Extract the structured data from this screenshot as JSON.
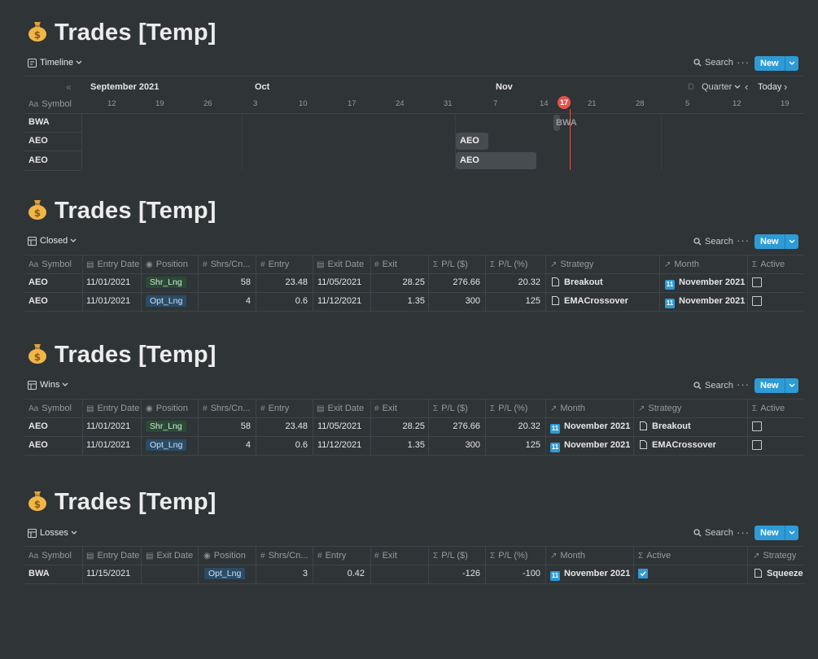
{
  "colors": {
    "background": "#2f3437",
    "accent": "#2e9bd6",
    "today": "#e5534b",
    "shr_tag": "#2b4a35",
    "opt_tag": "#2b4b66"
  },
  "common": {
    "search_label": "Search",
    "new_label": "New",
    "more_label": "···"
  },
  "timeline_block": {
    "title": "Trades [Temp]",
    "view_label": "Timeline",
    "months": [
      "September 2021",
      "Oct",
      "Nov"
    ],
    "days": [
      "12",
      "19",
      "26",
      "3",
      "10",
      "17",
      "24",
      "31",
      "7",
      "14",
      "21",
      "28",
      "5",
      "12",
      "19"
    ],
    "today_day": "17",
    "controls": {
      "scale": "Quarter",
      "today": "Today",
      "partial": "D"
    },
    "symbol_header": "Symbol",
    "rows": [
      "BWA",
      "AEO",
      "AEO"
    ],
    "bars": [
      "BWA",
      "AEO",
      "AEO"
    ]
  },
  "closed_block": {
    "title": "Trades [Temp]",
    "view_label": "Closed",
    "headers": [
      "Symbol",
      "Entry Date",
      "Position",
      "Shrs/Cn...",
      "Entry",
      "Exit Date",
      "Exit",
      "P/L ($)",
      "P/L (%)",
      "Strategy",
      "Month",
      "Active"
    ],
    "rows": [
      {
        "symbol": "AEO",
        "entry_date": "11/01/2021",
        "position": "Shr_Lng",
        "shrs": "58",
        "entry": "23.48",
        "exit_date": "11/05/2021",
        "exit": "28.25",
        "pl_usd": "276.66",
        "pl_pct": "20.32",
        "strategy": "Breakout",
        "month_badge": "11",
        "month": "November 2021",
        "active": false
      },
      {
        "symbol": "AEO",
        "entry_date": "11/01/2021",
        "position": "Opt_Lng",
        "shrs": "4",
        "entry": "0.6",
        "exit_date": "11/12/2021",
        "exit": "1.35",
        "pl_usd": "300",
        "pl_pct": "125",
        "strategy": "EMACrossover",
        "month_badge": "11",
        "month": "November 2021",
        "active": false
      }
    ]
  },
  "wins_block": {
    "title": "Trades [Temp]",
    "view_label": "Wins",
    "headers": [
      "Symbol",
      "Entry Date",
      "Position",
      "Shrs/Cn...",
      "Entry",
      "Exit Date",
      "Exit",
      "P/L ($)",
      "P/L (%)",
      "Month",
      "Strategy",
      "Active"
    ],
    "rows": [
      {
        "symbol": "AEO",
        "entry_date": "11/01/2021",
        "position": "Shr_Lng",
        "shrs": "58",
        "entry": "23.48",
        "exit_date": "11/05/2021",
        "exit": "28.25",
        "pl_usd": "276.66",
        "pl_pct": "20.32",
        "month_badge": "11",
        "month": "November 2021",
        "strategy": "Breakout",
        "active": false
      },
      {
        "symbol": "AEO",
        "entry_date": "11/01/2021",
        "position": "Opt_Lng",
        "shrs": "4",
        "entry": "0.6",
        "exit_date": "11/12/2021",
        "exit": "1.35",
        "pl_usd": "300",
        "pl_pct": "125",
        "month_badge": "11",
        "month": "November 2021",
        "strategy": "EMACrossover",
        "active": false
      }
    ]
  },
  "losses_block": {
    "title": "Trades [Temp]",
    "view_label": "Losses",
    "headers": [
      "Symbol",
      "Entry Date",
      "Exit Date",
      "Position",
      "Shrs/Cn...",
      "Entry",
      "Exit",
      "P/L ($)",
      "P/L (%)",
      "Month",
      "Active",
      "Strategy"
    ],
    "rows": [
      {
        "symbol": "BWA",
        "entry_date": "11/15/2021",
        "exit_date": "",
        "position": "Opt_Lng",
        "shrs": "3",
        "entry": "0.42",
        "exit": "",
        "pl_usd": "-126",
        "pl_pct": "-100",
        "month_badge": "11",
        "month": "November 2021",
        "active": true,
        "strategy": "Squeeze"
      }
    ]
  }
}
